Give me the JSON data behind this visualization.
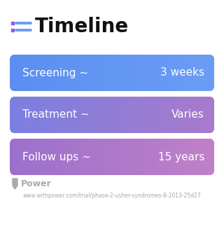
{
  "title": "Timeline",
  "background_color": "#ffffff",
  "rows": [
    {
      "label": "Screening ~",
      "value": "3 weeks",
      "color_left": "#5B8EF0",
      "color_right": "#6B9CF5"
    },
    {
      "label": "Treatment ~",
      "value": "Varies",
      "color_left": "#7A7FE0",
      "color_right": "#A87ACC"
    },
    {
      "label": "Follow ups ~",
      "value": "15 years",
      "color_left": "#9B70CC",
      "color_right": "#C080C8"
    }
  ],
  "footer_logo": "Power",
  "footer_url": "www.withpower.com/trial/phase-2-usher-syndromes-8-2013-25d27",
  "footer_color": "#aaaaaa",
  "title_fontsize": 20,
  "label_fontsize": 11,
  "value_fontsize": 11,
  "footer_logo_fontsize": 9,
  "footer_url_fontsize": 5.5,
  "icon_color_dot": "#8B5CF6",
  "icon_color_line": "#6B9CF5"
}
